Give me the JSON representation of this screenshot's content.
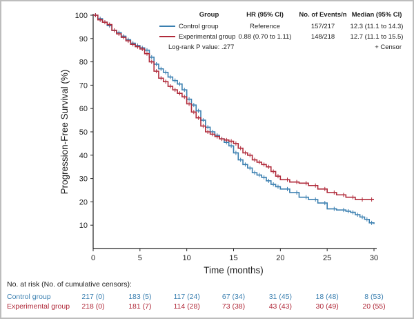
{
  "chart_data": {
    "type": "line",
    "subtype": "kaplan-meier",
    "xlabel": "Time (months)",
    "ylabel": "Progression-Free Survival (%)",
    "xlim": [
      0,
      30
    ],
    "ylim": [
      0,
      100
    ],
    "xticks": [
      0,
      5,
      10,
      15,
      20,
      25,
      30
    ],
    "yticks": [
      10,
      20,
      30,
      40,
      50,
      60,
      70,
      80,
      90,
      100
    ],
    "grid": false,
    "legend": {
      "position": "top-right",
      "headers": {
        "group": "Group",
        "hr": "HR (95% CI)",
        "events": "No. of Events/n",
        "median": "Median (95% CI)"
      },
      "rows": [
        {
          "name": "Control group",
          "hr": "Reference",
          "events": "157/217",
          "median": "12.3 (11.1 to 14.3)",
          "color": "#3a7fb0"
        },
        {
          "name": "Experimental group",
          "hr": "0.88 (0.70 to 1.11)",
          "events": "148/218",
          "median": "12.7 (11.1 to 15.5)",
          "color": "#b02a3a"
        }
      ],
      "logrank": "Log-rank P value: .277",
      "censor_note": "+ Censor"
    },
    "series": [
      {
        "name": "Control group",
        "color": "#3a7fb0",
        "x": [
          0,
          0.5,
          1,
          1.5,
          2,
          2.5,
          3,
          3.5,
          4,
          4.5,
          5,
          5.5,
          6,
          6.5,
          7,
          7.5,
          8,
          8.5,
          9,
          9.5,
          10,
          10.5,
          11,
          11.5,
          12,
          12.5,
          13,
          13.5,
          14,
          14.5,
          15,
          15.5,
          16,
          16.5,
          17,
          17.5,
          18,
          18.5,
          19,
          19.5,
          20,
          21,
          22,
          23,
          24,
          25,
          26,
          27,
          27.5,
          28,
          28.5,
          29,
          29.5,
          30
        ],
        "y": [
          100,
          98.5,
          97,
          95.5,
          93.5,
          92.5,
          91,
          89.5,
          88,
          87,
          86,
          85,
          82,
          79,
          77,
          75.5,
          73.5,
          72,
          70.5,
          68,
          64,
          61.5,
          59,
          55,
          52,
          50,
          48.5,
          47,
          45.5,
          44,
          41,
          38,
          36,
          34.5,
          32.5,
          31.5,
          30.5,
          29,
          27.5,
          26.5,
          25.5,
          24,
          22,
          21,
          19.5,
          17,
          16.5,
          16,
          15.5,
          14.5,
          13.5,
          12.5,
          11,
          10.5
        ]
      },
      {
        "name": "Experimental group",
        "color": "#b02a3a",
        "x": [
          0,
          0.5,
          1,
          1.5,
          2,
          2.5,
          3,
          3.5,
          4,
          4.5,
          5,
          5.5,
          6,
          6.5,
          7,
          7.5,
          8,
          8.5,
          9,
          9.5,
          10,
          10.5,
          11,
          11.5,
          12,
          12.5,
          13,
          13.5,
          14,
          14.5,
          15,
          15.5,
          16,
          16.5,
          17,
          17.5,
          18,
          18.5,
          19,
          19.5,
          20,
          21,
          22,
          23,
          24,
          25,
          26,
          27,
          28,
          29,
          30
        ],
        "y": [
          100,
          98,
          97,
          96,
          93.5,
          92,
          90.5,
          89,
          87.5,
          86.5,
          85.5,
          83.5,
          80,
          76,
          73,
          71.5,
          69.5,
          68,
          66.5,
          65,
          62,
          58.5,
          56,
          52.5,
          50,
          49,
          48,
          47,
          46.5,
          46,
          45,
          43,
          41,
          40,
          38,
          37,
          36,
          35,
          33,
          31,
          29.5,
          28.5,
          28,
          27,
          25.5,
          24,
          23,
          22,
          21,
          21,
          21
        ]
      }
    ],
    "risk_table": {
      "title": "No. at risk (No. of cumulative censors):",
      "times": [
        0,
        5,
        10,
        15,
        20,
        25,
        30
      ],
      "rows": [
        {
          "name": "Control group",
          "color": "#3a7fb0",
          "values": [
            "217 (0)",
            "183 (5)",
            "117 (24)",
            "67 (34)",
            "31 (45)",
            "18 (48)",
            "8 (53)"
          ]
        },
        {
          "name": "Experimental group",
          "color": "#b02a3a",
          "values": [
            "218 (0)",
            "181 (7)",
            "114 (28)",
            "73 (38)",
            "43 (43)",
            "30 (49)",
            "20 (55)"
          ]
        }
      ]
    }
  }
}
